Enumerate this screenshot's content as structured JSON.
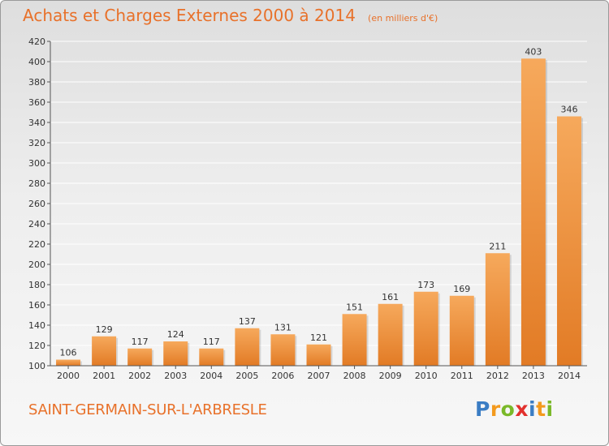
{
  "header": {
    "title": "Achats et Charges Externes 2000 à 2014",
    "subtitle": "(en milliers d'€)"
  },
  "footer": {
    "commune": "SAINT-GERMAIN-SUR-L'ARBRESLE"
  },
  "brand": {
    "name": "Proxiti",
    "letters": [
      "P",
      "r",
      "o",
      "x",
      "i",
      "t",
      "i"
    ],
    "colors": [
      "#3b7dc4",
      "#f39a1e",
      "#7ab929",
      "#e2312d",
      "#3b7dc4",
      "#f39a1e",
      "#7ab929"
    ]
  },
  "colors": {
    "accent": "#e8712a",
    "bar_light": "#f6a95c",
    "bar_dark": "#e27b25",
    "grid": "#ffffff"
  },
  "chart_data": {
    "type": "bar",
    "title": "Achats et Charges Externes 2000 à 2014",
    "subtitle": "(en milliers d'€)",
    "xlabel": "",
    "ylabel": "",
    "categories": [
      "2000",
      "2001",
      "2002",
      "2003",
      "2004",
      "2005",
      "2006",
      "2007",
      "2008",
      "2009",
      "2010",
      "2011",
      "2012",
      "2013",
      "2014"
    ],
    "values": [
      106,
      129,
      117,
      124,
      117,
      137,
      131,
      121,
      151,
      161,
      173,
      169,
      211,
      403,
      346
    ],
    "ylim": [
      100,
      420
    ],
    "yticks": [
      100,
      120,
      140,
      160,
      180,
      200,
      220,
      240,
      260,
      280,
      300,
      320,
      340,
      360,
      380,
      400,
      420
    ],
    "grid": true,
    "legend": "none"
  }
}
